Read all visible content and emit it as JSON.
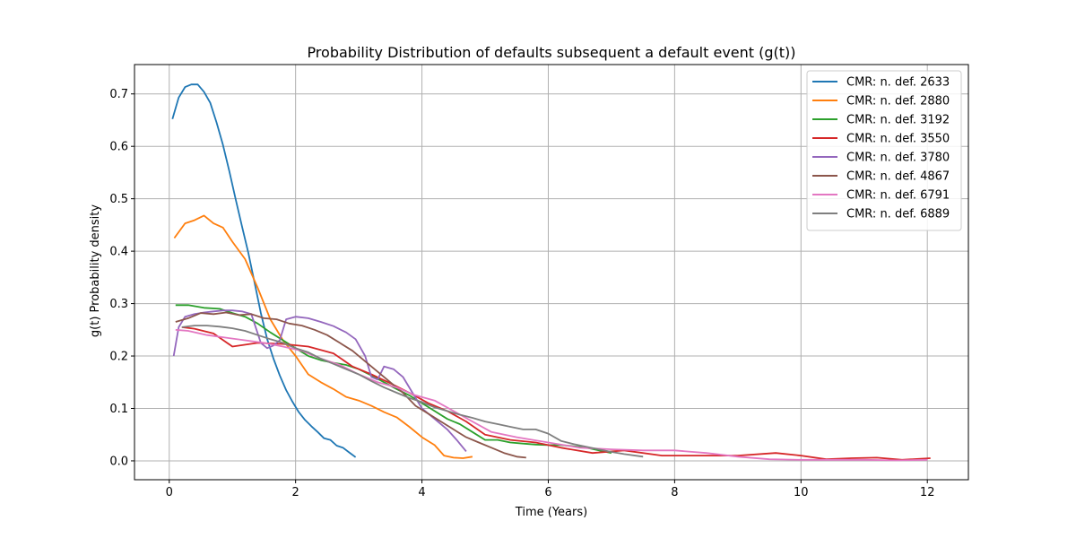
{
  "chart_data": {
    "type": "line",
    "title": "Probability Distribution of defaults subsequent a default event (g(t))",
    "xlabel": "Time (Years)",
    "ylabel": "g(t) Probability density",
    "xlim": [
      -0.55,
      12.65
    ],
    "ylim": [
      -0.036,
      0.756
    ],
    "xticks": [
      0,
      2,
      4,
      6,
      8,
      10,
      12
    ],
    "yticks": [
      0.0,
      0.1,
      0.2,
      0.3,
      0.4,
      0.5,
      0.6,
      0.7
    ],
    "xtick_labels": [
      "0",
      "2",
      "4",
      "6",
      "8",
      "10",
      "12"
    ],
    "ytick_labels": [
      "0.0",
      "0.1",
      "0.2",
      "0.3",
      "0.4",
      "0.5",
      "0.6",
      "0.7"
    ],
    "grid": true,
    "legend_position": "top-right",
    "series": [
      {
        "name": "CMR: n. def. 2633",
        "color": "#1f77b4",
        "x": [
          0.05,
          0.15,
          0.25,
          0.35,
          0.45,
          0.55,
          0.65,
          0.75,
          0.85,
          0.95,
          1.05,
          1.15,
          1.25,
          1.35,
          1.45,
          1.55,
          1.65,
          1.75,
          1.85,
          1.95,
          2.05,
          2.15,
          2.25,
          2.35,
          2.45,
          2.55,
          2.65,
          2.75,
          2.85,
          2.95
        ],
        "y": [
          0.652,
          0.693,
          0.713,
          0.718,
          0.718,
          0.704,
          0.683,
          0.645,
          0.603,
          0.553,
          0.5,
          0.448,
          0.398,
          0.34,
          0.282,
          0.232,
          0.195,
          0.163,
          0.135,
          0.113,
          0.093,
          0.078,
          0.066,
          0.055,
          0.043,
          0.04,
          0.029,
          0.025,
          0.016,
          0.007
        ]
      },
      {
        "name": "CMR: n. def. 2880",
        "color": "#ff7f0e",
        "x": [
          0.08,
          0.25,
          0.4,
          0.55,
          0.7,
          0.85,
          1.0,
          1.2,
          1.4,
          1.6,
          1.8,
          2.0,
          2.2,
          2.4,
          2.6,
          2.8,
          3.0,
          3.2,
          3.4,
          3.6,
          3.8,
          4.0,
          4.2,
          4.35,
          4.5,
          4.65,
          4.8
        ],
        "y": [
          0.425,
          0.453,
          0.459,
          0.468,
          0.453,
          0.445,
          0.418,
          0.385,
          0.33,
          0.27,
          0.23,
          0.2,
          0.165,
          0.15,
          0.137,
          0.122,
          0.115,
          0.105,
          0.093,
          0.083,
          0.065,
          0.045,
          0.03,
          0.01,
          0.006,
          0.005,
          0.008
        ]
      },
      {
        "name": "CMR: n. def. 3192",
        "color": "#2ca02c",
        "x": [
          0.1,
          0.3,
          0.55,
          0.8,
          1.0,
          1.2,
          1.4,
          1.6,
          1.8,
          2.0,
          2.2,
          2.4,
          2.6,
          2.8,
          3.0,
          3.2,
          3.4,
          3.6,
          3.8,
          4.0,
          4.2,
          4.4,
          4.6,
          4.8,
          5.0,
          5.2,
          5.4,
          5.6,
          5.8,
          6.0,
          6.2,
          6.4,
          6.6,
          6.8,
          7.0
        ],
        "y": [
          0.297,
          0.297,
          0.292,
          0.29,
          0.282,
          0.275,
          0.262,
          0.245,
          0.23,
          0.215,
          0.2,
          0.192,
          0.187,
          0.183,
          0.175,
          0.163,
          0.15,
          0.137,
          0.125,
          0.11,
          0.095,
          0.08,
          0.07,
          0.055,
          0.04,
          0.04,
          0.035,
          0.033,
          0.031,
          0.03,
          0.03,
          0.028,
          0.025,
          0.02,
          0.015
        ]
      },
      {
        "name": "CMR: n. def. 3550",
        "color": "#d62728",
        "x": [
          0.2,
          0.4,
          0.7,
          1.0,
          1.4,
          1.8,
          2.2,
          2.6,
          2.9,
          3.2,
          3.5,
          3.8,
          4.1,
          4.4,
          4.7,
          5.0,
          5.4,
          5.8,
          6.2,
          6.7,
          7.2,
          7.8,
          8.4,
          9.0,
          9.6,
          10.0,
          10.4,
          10.8,
          11.2,
          11.6,
          12.05
        ],
        "y": [
          0.255,
          0.252,
          0.243,
          0.218,
          0.225,
          0.223,
          0.218,
          0.205,
          0.18,
          0.165,
          0.148,
          0.13,
          0.11,
          0.095,
          0.075,
          0.05,
          0.04,
          0.035,
          0.025,
          0.015,
          0.02,
          0.01,
          0.01,
          0.01,
          0.015,
          0.01,
          0.003,
          0.005,
          0.006,
          0.002,
          0.005
        ]
      },
      {
        "name": "CMR: n. def. 3780",
        "color": "#9467bd",
        "x": [
          0.07,
          0.15,
          0.25,
          0.4,
          0.55,
          0.7,
          0.85,
          1.0,
          1.15,
          1.3,
          1.45,
          1.55,
          1.65,
          1.75,
          1.85,
          2.0,
          2.2,
          2.4,
          2.6,
          2.8,
          2.95,
          3.1,
          3.2,
          3.3,
          3.4,
          3.55,
          3.7,
          3.85,
          4.0,
          4.2,
          4.4,
          4.55,
          4.7
        ],
        "y": [
          0.2,
          0.255,
          0.275,
          0.28,
          0.283,
          0.285,
          0.287,
          0.287,
          0.285,
          0.28,
          0.225,
          0.215,
          0.22,
          0.23,
          0.27,
          0.275,
          0.272,
          0.265,
          0.257,
          0.245,
          0.232,
          0.2,
          0.16,
          0.155,
          0.18,
          0.175,
          0.16,
          0.13,
          0.1,
          0.08,
          0.06,
          0.04,
          0.018
        ]
      },
      {
        "name": "CMR: n. def. 4867",
        "color": "#8c564b",
        "x": [
          0.1,
          0.3,
          0.5,
          0.7,
          0.9,
          1.1,
          1.3,
          1.5,
          1.7,
          1.9,
          2.1,
          2.3,
          2.5,
          2.7,
          2.9,
          3.1,
          3.3,
          3.5,
          3.7,
          3.9,
          4.1,
          4.3,
          4.5,
          4.7,
          4.9,
          5.1,
          5.3,
          5.5,
          5.65
        ],
        "y": [
          0.265,
          0.272,
          0.282,
          0.28,
          0.283,
          0.278,
          0.28,
          0.272,
          0.27,
          0.262,
          0.258,
          0.25,
          0.24,
          0.225,
          0.21,
          0.19,
          0.17,
          0.15,
          0.13,
          0.105,
          0.09,
          0.075,
          0.06,
          0.045,
          0.035,
          0.025,
          0.015,
          0.008,
          0.006
        ]
      },
      {
        "name": "CMR: n. def. 6791",
        "color": "#e377c2",
        "x": [
          0.1,
          0.3,
          0.6,
          0.9,
          1.2,
          1.5,
          1.8,
          2.1,
          2.4,
          2.7,
          3.0,
          3.3,
          3.6,
          3.9,
          4.2,
          4.5,
          4.8,
          5.1,
          5.5,
          6.0,
          6.5,
          7.0,
          7.5,
          8.0,
          8.5,
          9.0,
          9.5,
          10.0,
          10.5,
          11.0,
          11.5,
          12.0
        ],
        "y": [
          0.25,
          0.248,
          0.24,
          0.235,
          0.23,
          0.225,
          0.218,
          0.21,
          0.195,
          0.183,
          0.165,
          0.15,
          0.14,
          0.125,
          0.115,
          0.095,
          0.075,
          0.055,
          0.045,
          0.035,
          0.025,
          0.022,
          0.02,
          0.02,
          0.015,
          0.008,
          0.003,
          0.002,
          0.002,
          0.002,
          0.001,
          0.002
        ]
      },
      {
        "name": "CMR: n. def. 6889",
        "color": "#7f7f7f",
        "x": [
          0.2,
          0.4,
          0.6,
          0.8,
          1.0,
          1.2,
          1.4,
          1.6,
          1.8,
          2.0,
          2.2,
          2.4,
          2.6,
          2.8,
          3.0,
          3.2,
          3.4,
          3.6,
          3.8,
          4.0,
          4.2,
          4.4,
          4.6,
          4.8,
          5.0,
          5.2,
          5.4,
          5.6,
          5.8,
          6.0,
          6.2,
          6.4,
          6.6,
          6.8,
          7.0,
          7.2,
          7.5
        ],
        "y": [
          0.255,
          0.258,
          0.258,
          0.256,
          0.253,
          0.248,
          0.24,
          0.232,
          0.225,
          0.215,
          0.207,
          0.195,
          0.185,
          0.175,
          0.165,
          0.152,
          0.14,
          0.13,
          0.12,
          0.112,
          0.102,
          0.095,
          0.088,
          0.082,
          0.075,
          0.07,
          0.065,
          0.06,
          0.06,
          0.052,
          0.038,
          0.032,
          0.027,
          0.022,
          0.017,
          0.013,
          0.008
        ]
      }
    ]
  }
}
